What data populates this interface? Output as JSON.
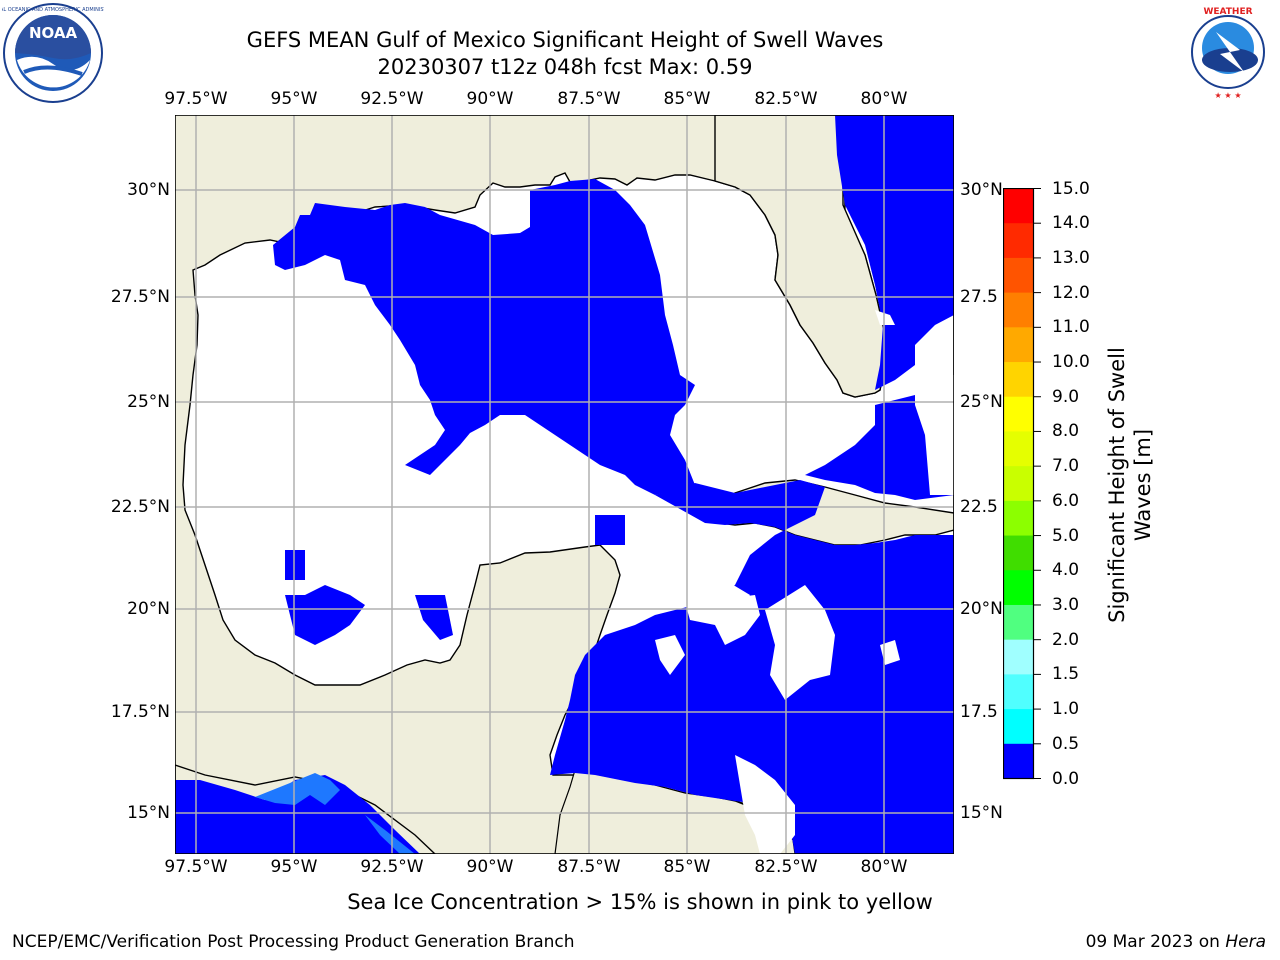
{
  "header": {
    "title_line1": "GEFS MEAN Gulf of Mexico Significant Height of Swell Waves",
    "title_line2": "20230307 t12z 048h fcst   Max: 0.59"
  },
  "logos": {
    "noaa_text": "NOAA",
    "noaa_ring_text": "NATIONAL OCEANIC AND ATMOSPHERIC ADMINISTRATION · U.S. DEPARTMENT OF COMMERCE",
    "nws_ring_text": "NATIONAL WEATHER SERVICE"
  },
  "map": {
    "lon_ticks": [
      "97.5°W",
      "95°W",
      "92.5°W",
      "90°W",
      "87.5°W",
      "85°W",
      "82.5°W",
      "80°W"
    ],
    "lat_ticks_left": [
      "30°N",
      "27.5°N",
      "25°N",
      "22.5°N",
      "20°N",
      "17.5°N",
      "15°N"
    ],
    "lat_ticks_right": [
      "30°N",
      "27.5",
      "25°N",
      "22.5",
      "20°N",
      "17.5",
      "15°N"
    ],
    "colors": {
      "land": "#efeedc",
      "ocean_low": "#0000ff",
      "ocean_mid": "#1e78ff",
      "grid": "#b0b0b0"
    }
  },
  "colorbar": {
    "label": "Significant Height of Swell Waves [m]",
    "ticks": [
      "15.0",
      "14.0",
      "13.0",
      "12.0",
      "11.0",
      "10.0",
      "9.0",
      "8.0",
      "7.0",
      "6.0",
      "5.0",
      "4.0",
      "3.0",
      "2.0",
      "1.5",
      "1.0",
      "0.5",
      "0.0"
    ],
    "colors": [
      "#ff0000",
      "#ff2a00",
      "#ff5400",
      "#ff7f00",
      "#ffa900",
      "#ffd400",
      "#ffff00",
      "#e5ff00",
      "#c9ff00",
      "#8cff00",
      "#40dd00",
      "#00ff00",
      "#50ff80",
      "#a0ffff",
      "#50ffff",
      "#00ffff",
      "#0080ff",
      "#0000ff"
    ]
  },
  "note": "Sea Ice Concentration > 15% is shown in pink to yellow",
  "footer": {
    "left": "NCEP/EMC/Verification Post Processing Product Generation Branch",
    "date": "09 Mar 2023 on ",
    "machine": "Hera"
  }
}
